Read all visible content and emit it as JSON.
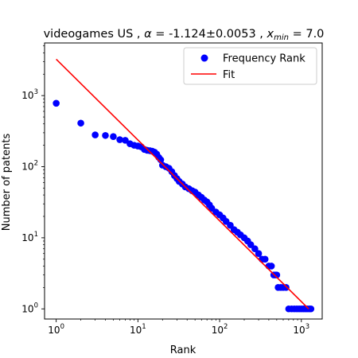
{
  "chart_data": {
    "type": "scatter",
    "title_parts": {
      "prefix": "videogames US , ",
      "alpha_symbol": "α",
      "alpha_text": " = -1.124±0.0053 , ",
      "x_symbol": "x",
      "x_sub": "min",
      "x_text": " = 7.0"
    },
    "xlabel": "Rank",
    "ylabel": "Number of patents",
    "xscale": "log",
    "yscale": "log",
    "xlim": [
      0.72,
      1800
    ],
    "ylim": [
      0.72,
      5500
    ],
    "x_ticks": [
      {
        "value": 1,
        "base": "10",
        "exp": "0"
      },
      {
        "value": 10,
        "base": "10",
        "exp": "1"
      },
      {
        "value": 100,
        "base": "10",
        "exp": "2"
      },
      {
        "value": 1000,
        "base": "10",
        "exp": "3"
      }
    ],
    "y_ticks": [
      {
        "value": 1,
        "base": "10",
        "exp": "0"
      },
      {
        "value": 10,
        "base": "10",
        "exp": "1"
      },
      {
        "value": 100,
        "base": "10",
        "exp": "2"
      },
      {
        "value": 1000,
        "base": "10",
        "exp": "3"
      }
    ],
    "legend": {
      "position": "top-right",
      "entries": [
        {
          "label": "Frequency Rank",
          "marker": "dot",
          "color": "#0000ff"
        },
        {
          "label": "Fit",
          "marker": "line",
          "color": "#ff0000"
        }
      ]
    },
    "series": [
      {
        "name": "Frequency Rank",
        "color": "#0000ff",
        "points": [
          [
            1,
            780
          ],
          [
            2,
            410
          ],
          [
            3,
            280
          ],
          [
            4,
            275
          ],
          [
            5,
            265
          ],
          [
            6,
            240
          ],
          [
            7,
            235
          ],
          [
            8,
            210
          ],
          [
            9,
            200
          ],
          [
            10,
            195
          ],
          [
            11,
            190
          ],
          [
            12,
            175
          ],
          [
            13,
            170
          ],
          [
            14,
            168
          ],
          [
            15,
            165
          ],
          [
            16,
            160
          ],
          [
            17,
            150
          ],
          [
            18,
            135
          ],
          [
            19,
            125
          ],
          [
            20,
            105
          ],
          [
            22,
            100
          ],
          [
            24,
            95
          ],
          [
            26,
            85
          ],
          [
            28,
            75
          ],
          [
            30,
            68
          ],
          [
            32,
            62
          ],
          [
            35,
            57
          ],
          [
            38,
            52
          ],
          [
            42,
            49
          ],
          [
            46,
            46
          ],
          [
            50,
            44
          ],
          [
            55,
            40
          ],
          [
            60,
            37
          ],
          [
            65,
            34
          ],
          [
            70,
            32
          ],
          [
            75,
            29
          ],
          [
            80,
            26
          ],
          [
            90,
            23
          ],
          [
            100,
            21
          ],
          [
            110,
            19
          ],
          [
            120,
            17
          ],
          [
            135,
            15
          ],
          [
            150,
            13
          ],
          [
            165,
            12
          ],
          [
            180,
            11
          ],
          [
            200,
            10
          ],
          [
            220,
            9
          ],
          [
            240,
            8
          ],
          [
            270,
            7
          ],
          [
            300,
            6
          ],
          [
            330,
            5
          ],
          [
            360,
            5
          ],
          [
            400,
            4
          ],
          [
            430,
            4
          ],
          [
            460,
            3
          ],
          [
            480,
            3
          ],
          [
            500,
            3
          ],
          [
            520,
            2
          ],
          [
            560,
            2
          ],
          [
            600,
            2
          ],
          [
            650,
            2
          ],
          [
            700,
            1
          ],
          [
            760,
            1
          ],
          [
            820,
            1
          ],
          [
            880,
            1
          ],
          [
            940,
            1
          ],
          [
            1000,
            1
          ],
          [
            1060,
            1
          ],
          [
            1120,
            1
          ],
          [
            1180,
            1
          ],
          [
            1250,
            1
          ],
          [
            1310,
            1
          ]
        ]
      }
    ],
    "fit": {
      "name": "Fit",
      "color": "#ff0000",
      "x": [
        1,
        1230
      ],
      "y": [
        3250,
        1.0
      ]
    }
  }
}
